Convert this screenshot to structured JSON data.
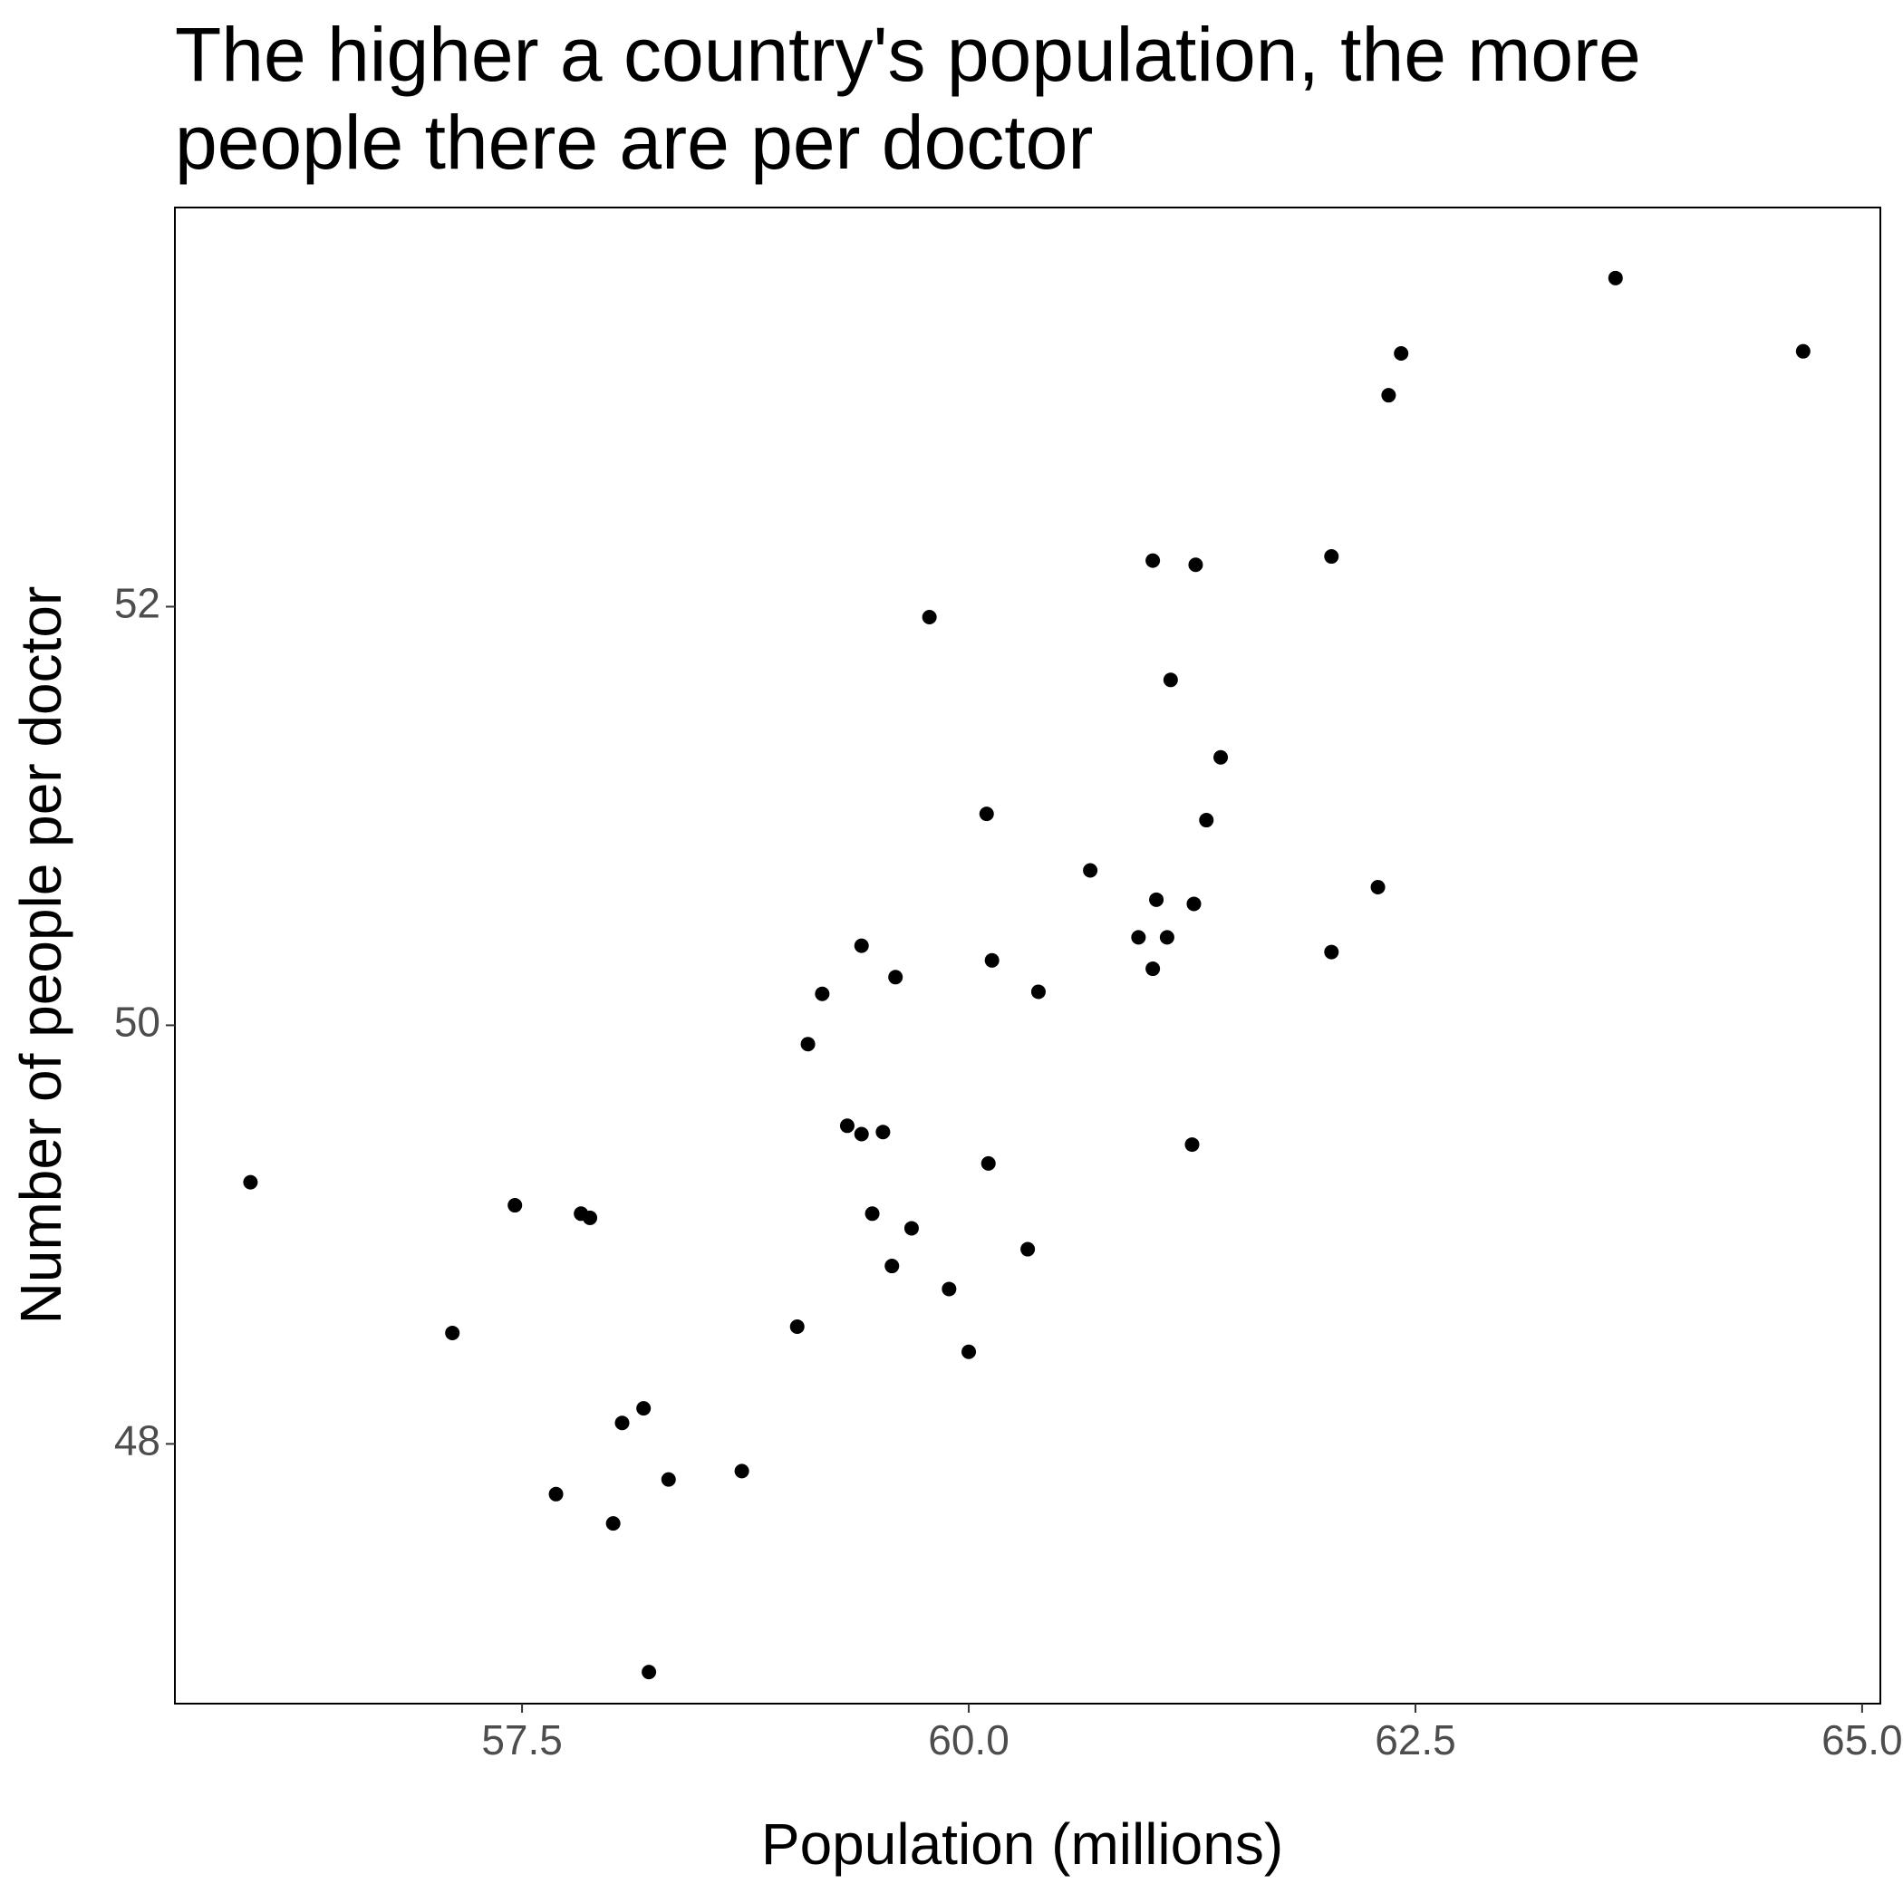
{
  "chart_data": {
    "type": "scatter",
    "title": "The higher a country's population, the more people there are per doctor",
    "x_label": "Population (millions)",
    "y_label": "Number of people per doctor",
    "color": "#000000",
    "x": [
      55.98,
      57.46,
      57.11,
      57.83,
      57.88,
      57.69,
      58.06,
      58.18,
      58.01,
      58.32,
      58.21,
      58.73,
      59.04,
      59.1,
      59.18,
      59.32,
      59.4,
      59.4,
      59.52,
      59.46,
      59.59,
      59.57,
      59.68,
      59.78,
      59.89,
      60.0,
      60.1,
      60.11,
      60.13,
      60.33,
      60.39,
      60.68,
      60.95,
      61.03,
      61.03,
      61.05,
      61.11,
      61.13,
      61.27,
      61.26,
      61.25,
      61.33,
      61.41,
      62.03,
      62.03,
      62.29,
      62.35,
      62.42,
      63.62,
      64.67
    ],
    "values": [
      49.25,
      49.14,
      48.53,
      49.1,
      49.08,
      47.76,
      48.1,
      48.17,
      47.62,
      47.83,
      46.91,
      47.87,
      48.56,
      49.91,
      50.15,
      49.52,
      49.48,
      50.38,
      49.49,
      49.1,
      50.23,
      48.85,
      49.03,
      51.95,
      48.74,
      48.44,
      51.01,
      49.34,
      50.31,
      48.93,
      50.16,
      50.74,
      50.42,
      52.22,
      50.27,
      50.6,
      50.42,
      51.65,
      52.2,
      50.58,
      49.43,
      50.98,
      51.28,
      52.24,
      50.35,
      50.66,
      53.01,
      53.21,
      53.57,
      53.22
    ],
    "xlim": [
      55.557,
      65.102
    ],
    "ylim": [
      46.759,
      53.907
    ],
    "xticks": [
      {
        "value": 57.5,
        "label": "57.5"
      },
      {
        "value": 60,
        "label": "60.0"
      },
      {
        "value": 62.5,
        "label": "62.5"
      },
      {
        "value": 65,
        "label": "65.0"
      }
    ],
    "yticks": [
      48,
      50,
      52
    ],
    "grid": false
  }
}
